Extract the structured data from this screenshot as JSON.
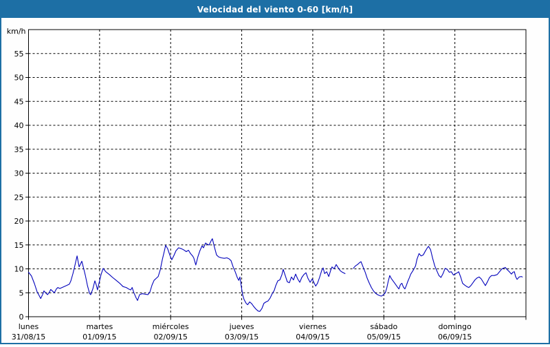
{
  "window": {
    "title": "Velocidad del viento 0-60 [km/h]"
  },
  "colors": {
    "titlebar_bg": "#1d6fa5",
    "titlebar_text": "#ffffff",
    "outer_border": "#1d6fa5",
    "plot_bg": "#ffffff",
    "frame": "#000000",
    "grid": "#000000",
    "line": "#0000bb",
    "text": "#000000"
  },
  "chart_data": {
    "type": "line",
    "title": "Velocidad del viento 0-60 [km/h]",
    "unit_label": "km/h",
    "xlabel": "",
    "ylabel": "km/h",
    "ylim": [
      0,
      60
    ],
    "xlim_hours": [
      0,
      168
    ],
    "grid": "dashed",
    "legend_position": "none",
    "y_ticks": [
      0,
      5,
      10,
      15,
      20,
      25,
      30,
      35,
      40,
      45,
      50,
      55
    ],
    "y_gridlines": [
      5,
      10,
      15,
      20,
      25,
      30,
      35,
      40,
      45,
      50,
      55
    ],
    "x_tick_hours": [
      0,
      24,
      48,
      72,
      96,
      120,
      144,
      168
    ],
    "x_gridline_hours": [
      24,
      48,
      72,
      96,
      120,
      144
    ],
    "x_categories": [
      {
        "day": "lunes",
        "date": "31/08/15",
        "hour": 0
      },
      {
        "day": "martes",
        "date": "01/09/15",
        "hour": 24
      },
      {
        "day": "miércoles",
        "date": "02/09/15",
        "hour": 48
      },
      {
        "day": "jueves",
        "date": "03/09/15",
        "hour": 72
      },
      {
        "day": "viernes",
        "date": "04/09/15",
        "hour": 96
      },
      {
        "day": "sábado",
        "date": "05/09/15",
        "hour": 120
      },
      {
        "day": "domingo",
        "date": "06/09/15",
        "hour": 144
      }
    ],
    "series": [
      {
        "name": "velocidad del viento",
        "color": "#0000bb",
        "units": "km/h",
        "segments": [
          [
            [
              0,
              9.3
            ],
            [
              1,
              8.5
            ],
            [
              2,
              6.9
            ],
            [
              2.9,
              5.2
            ],
            [
              3.6,
              4.4
            ],
            [
              4.1,
              3.8
            ],
            [
              4.8,
              4.7
            ],
            [
              5.2,
              5.4
            ],
            [
              5.9,
              4.9
            ],
            [
              6.4,
              4.6
            ],
            [
              7.1,
              5.2
            ],
            [
              7.5,
              5.7
            ],
            [
              8.2,
              5.3
            ],
            [
              8.7,
              5.0
            ],
            [
              9.4,
              5.8
            ],
            [
              9.9,
              6.1
            ],
            [
              10.6,
              5.9
            ],
            [
              11.7,
              6.2
            ],
            [
              12.8,
              6.5
            ],
            [
              13.8,
              6.8
            ],
            [
              14.3,
              7.5
            ],
            [
              15,
              9.0
            ],
            [
              15.7,
              10.8
            ],
            [
              16.4,
              12.7
            ],
            [
              17.1,
              10.4
            ],
            [
              18,
              11.6
            ],
            [
              18.7,
              9.9
            ],
            [
              19.2,
              8.6
            ],
            [
              19.9,
              6.5
            ],
            [
              20.6,
              4.9
            ],
            [
              21,
              4.6
            ],
            [
              21.7,
              5.8
            ],
            [
              22.4,
              7.5
            ],
            [
              22.9,
              6.6
            ],
            [
              23.3,
              5.6
            ],
            [
              23.8,
              7.0
            ],
            [
              24.5,
              8.8
            ],
            [
              25.2,
              10.1
            ],
            [
              26.1,
              9.4
            ],
            [
              27.3,
              8.8
            ],
            [
              28.4,
              8.2
            ],
            [
              29.6,
              7.6
            ],
            [
              30.8,
              7.0
            ],
            [
              31.9,
              6.3
            ],
            [
              33,
              6.1
            ],
            [
              33.8,
              5.8
            ],
            [
              34.5,
              5.6
            ],
            [
              35,
              6.1
            ],
            [
              35.6,
              5.0
            ],
            [
              36.3,
              4.0
            ],
            [
              36.8,
              3.4
            ],
            [
              37.5,
              4.6
            ],
            [
              38.4,
              4.8
            ],
            [
              39.4,
              4.7
            ],
            [
              40.3,
              4.6
            ],
            [
              41,
              5.2
            ],
            [
              41.7,
              6.6
            ],
            [
              42.4,
              7.6
            ],
            [
              43.1,
              8.0
            ],
            [
              43.8,
              8.4
            ],
            [
              44.5,
              9.8
            ],
            [
              45.2,
              12.0
            ],
            [
              45.9,
              13.8
            ],
            [
              46.3,
              14.9
            ],
            [
              47,
              14.2
            ],
            [
              47.7,
              12.9
            ],
            [
              48.4,
              11.9
            ],
            [
              49.1,
              12.8
            ],
            [
              49.8,
              13.8
            ],
            [
              50.7,
              14.4
            ],
            [
              51.7,
              14.2
            ],
            [
              52.6,
              13.9
            ],
            [
              53.3,
              13.6
            ],
            [
              54,
              13.9
            ],
            [
              54.7,
              13.2
            ],
            [
              55.4,
              12.7
            ],
            [
              55.8,
              12.3
            ],
            [
              56.5,
              10.8
            ],
            [
              57.2,
              12.5
            ],
            [
              57.9,
              13.8
            ],
            [
              58.6,
              14.8
            ],
            [
              59.1,
              14.4
            ],
            [
              59.8,
              15.4
            ],
            [
              60.5,
              15.1
            ],
            [
              61,
              15.0
            ],
            [
              61.7,
              15.9
            ],
            [
              62.1,
              16.3
            ],
            [
              62.8,
              14.5
            ],
            [
              63.5,
              12.9
            ],
            [
              64.2,
              12.5
            ],
            [
              65.1,
              12.3
            ],
            [
              66.1,
              12.2
            ],
            [
              67,
              12.3
            ],
            [
              67.7,
              12.1
            ],
            [
              68.4,
              11.7
            ],
            [
              69.1,
              10.4
            ],
            [
              69.8,
              9.4
            ],
            [
              70.5,
              8.2
            ],
            [
              71,
              7.6
            ],
            [
              71.4,
              8.3
            ],
            [
              71.9,
              6.2
            ],
            [
              72.3,
              4.6
            ],
            [
              72.8,
              3.6
            ],
            [
              73.5,
              2.8
            ],
            [
              74,
              2.5
            ],
            [
              74.7,
              3.1
            ],
            [
              75.4,
              2.7
            ],
            [
              76.1,
              2.1
            ],
            [
              76.8,
              1.6
            ],
            [
              77.5,
              1.2
            ],
            [
              78.1,
              1.1
            ],
            [
              78.8,
              1.7
            ],
            [
              79.5,
              2.8
            ],
            [
              80.2,
              3.1
            ],
            [
              80.9,
              3.3
            ],
            [
              81.6,
              3.9
            ],
            [
              82.3,
              4.8
            ],
            [
              83,
              5.5
            ],
            [
              83.5,
              6.5
            ],
            [
              84.2,
              7.5
            ],
            [
              84.9,
              7.7
            ],
            [
              85.6,
              8.8
            ],
            [
              86,
              9.9
            ],
            [
              86.7,
              8.6
            ],
            [
              87.4,
              7.3
            ],
            [
              88.1,
              7.1
            ],
            [
              88.8,
              8.3
            ],
            [
              89.5,
              7.7
            ],
            [
              90.2,
              8.9
            ],
            [
              90.9,
              7.9
            ],
            [
              91.6,
              7.2
            ],
            [
              92.3,
              8.2
            ],
            [
              93,
              8.8
            ],
            [
              93.7,
              9.2
            ],
            [
              94.4,
              8.0
            ],
            [
              95.1,
              7.2
            ],
            [
              95.8,
              7.9
            ],
            [
              96.5,
              7.0
            ],
            [
              97,
              6.4
            ],
            [
              97.6,
              7.0
            ],
            [
              98.3,
              8.2
            ],
            [
              99,
              9.6
            ],
            [
              99.5,
              10.2
            ],
            [
              100,
              9.0
            ],
            [
              100.7,
              9.4
            ],
            [
              101.4,
              8.4
            ],
            [
              102.1,
              9.8
            ],
            [
              102.5,
              10.4
            ],
            [
              103.2,
              10.0
            ],
            [
              103.9,
              10.9
            ],
            [
              104.6,
              10.2
            ],
            [
              105.3,
              9.6
            ],
            [
              106,
              9.3
            ],
            [
              106.9,
              9.0
            ]
          ],
          [
            [
              109.7,
              10.1
            ],
            [
              110.4,
              10.6
            ],
            [
              111.1,
              10.9
            ],
            [
              111.8,
              11.3
            ],
            [
              112.3,
              11.5
            ],
            [
              113,
              10.4
            ],
            [
              113.7,
              9.3
            ],
            [
              114.4,
              8.0
            ],
            [
              115.1,
              7.0
            ],
            [
              115.8,
              6.1
            ],
            [
              116.5,
              5.4
            ],
            [
              117.2,
              4.9
            ],
            [
              117.9,
              4.6
            ],
            [
              118.6,
              4.4
            ],
            [
              119.2,
              4.3
            ],
            [
              119.9,
              4.6
            ],
            [
              120.5,
              5.0
            ],
            [
              121,
              6.0
            ],
            [
              121.5,
              7.4
            ],
            [
              122,
              8.6
            ],
            [
              122.5,
              8.0
            ],
            [
              123.2,
              7.4
            ],
            [
              123.9,
              6.8
            ],
            [
              124.6,
              6.2
            ],
            [
              125.1,
              5.8
            ],
            [
              125.6,
              6.7
            ],
            [
              126.1,
              7.0
            ],
            [
              126.6,
              6.2
            ],
            [
              127.1,
              5.8
            ],
            [
              127.6,
              6.5
            ],
            [
              128.1,
              7.4
            ],
            [
              128.6,
              8.1
            ],
            [
              129.1,
              8.9
            ],
            [
              130,
              9.8
            ],
            [
              130.7,
              10.6
            ],
            [
              131.2,
              12.0
            ],
            [
              131.9,
              13.2
            ],
            [
              132.6,
              12.7
            ],
            [
              133.3,
              12.9
            ],
            [
              134,
              13.7
            ],
            [
              134.7,
              14.4
            ],
            [
              135.1,
              14.7
            ],
            [
              135.8,
              14.0
            ],
            [
              136.5,
              12.2
            ],
            [
              137.2,
              10.6
            ],
            [
              137.9,
              9.6
            ],
            [
              138.6,
              8.6
            ],
            [
              139.3,
              8.2
            ],
            [
              140,
              9.0
            ],
            [
              140.7,
              10.1
            ],
            [
              141.4,
              9.9
            ],
            [
              142.1,
              9.3
            ],
            [
              142.8,
              9.4
            ],
            [
              143.5,
              8.7
            ],
            [
              144,
              8.9
            ],
            [
              144.6,
              9.1
            ],
            [
              145.3,
              9.4
            ],
            [
              146,
              8.2
            ],
            [
              146.6,
              7.0
            ],
            [
              147.3,
              6.6
            ],
            [
              148,
              6.3
            ],
            [
              148.7,
              6.1
            ],
            [
              149.4,
              6.5
            ],
            [
              150.1,
              7.1
            ],
            [
              150.8,
              7.7
            ],
            [
              151.5,
              8.1
            ],
            [
              152.2,
              8.3
            ],
            [
              152.9,
              7.9
            ],
            [
              153.6,
              7.2
            ],
            [
              154.3,
              6.5
            ],
            [
              155,
              7.3
            ],
            [
              155.7,
              8.2
            ],
            [
              156.4,
              8.6
            ],
            [
              157.3,
              8.6
            ],
            [
              158.3,
              8.8
            ],
            [
              159.2,
              9.5
            ],
            [
              159.9,
              10.0
            ],
            [
              160.6,
              10.2
            ],
            [
              161,
              10.3
            ],
            [
              161.7,
              9.8
            ],
            [
              162.4,
              9.4
            ],
            [
              163.1,
              8.9
            ],
            [
              163.6,
              9.3
            ],
            [
              164.1,
              9.4
            ],
            [
              164.5,
              8.4
            ],
            [
              165,
              7.8
            ],
            [
              165.7,
              8.3
            ],
            [
              166.4,
              8.4
            ],
            [
              166.8,
              8.3
            ]
          ]
        ]
      }
    ]
  }
}
